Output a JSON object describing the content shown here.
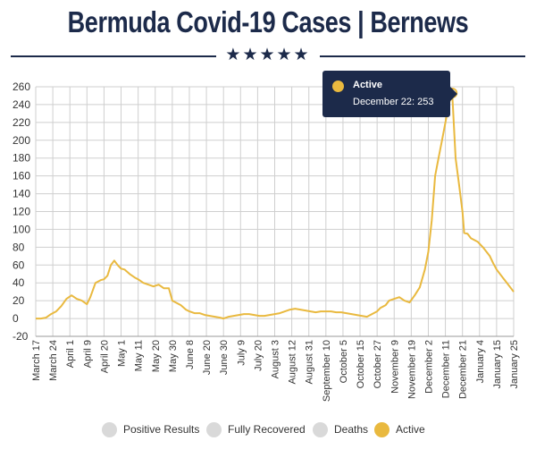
{
  "header": {
    "title": "Bermuda Covid-19 Cases | Bernews",
    "stars": "★★★★★"
  },
  "tooltip": {
    "series": "Active",
    "text": "December 22: 253",
    "color": "#e9b93f"
  },
  "legend": [
    {
      "label": "Positive Results",
      "color": "#d9d9d9"
    },
    {
      "label": "Fully Recovered",
      "color": "#d9d9d9"
    },
    {
      "label": "Deaths",
      "color": "#d9d9d9"
    },
    {
      "label": "Active",
      "color": "#e9b93f"
    }
  ],
  "chart_data": {
    "type": "line",
    "ylim": [
      -20,
      260
    ],
    "yticks": [
      -20,
      0,
      20,
      40,
      60,
      80,
      100,
      120,
      140,
      160,
      180,
      200,
      220,
      240,
      260
    ],
    "xticks": [
      "March 17",
      "March 24",
      "April 1",
      "April 9",
      "April 20",
      "May 1",
      "May 11",
      "May 20",
      "May 30",
      "June 8",
      "June 20",
      "June 30",
      "July 9",
      "July 20",
      "August 3",
      "August 12",
      "August 31",
      "September 10",
      "October 5",
      "October 15",
      "October 27",
      "November 9",
      "November 19",
      "December 2",
      "December 11",
      "December 21",
      "January 4",
      "January 15",
      "January 25"
    ],
    "series": [
      {
        "name": "Active",
        "color": "#e9b93f",
        "x": [
          0,
          0.3,
          0.6,
          0.9,
          1.2,
          1.5,
          1.8,
          2.1,
          2.4,
          2.7,
          3.0,
          3.2,
          3.5,
          3.8,
          4.0,
          4.2,
          4.4,
          4.6,
          4.8,
          5.0,
          5.2,
          5.5,
          5.8,
          6.0,
          6.3,
          6.6,
          6.9,
          7.2,
          7.5,
          7.8,
          8.0,
          8.2,
          8.5,
          8.8,
          9.0,
          9.3,
          9.6,
          9.9,
          10.2,
          10.5,
          10.8,
          11.0,
          11.3,
          11.6,
          11.9,
          12.2,
          12.5,
          12.8,
          13.1,
          13.4,
          13.7,
          14.0,
          14.3,
          14.6,
          14.9,
          15.2,
          15.5,
          15.8,
          16.1,
          16.4,
          16.7,
          17.0,
          17.3,
          17.6,
          17.9,
          18.2,
          18.5,
          18.8,
          19.1,
          19.4,
          19.7,
          20.0,
          20.2,
          20.5,
          20.7,
          21.0,
          21.3,
          21.6,
          21.9,
          22.2,
          22.5,
          22.8,
          23.0,
          23.2,
          23.4,
          23.6,
          23.8,
          24.0,
          24.2,
          24.4,
          24.6,
          24.8,
          25.0,
          25.1,
          25.3,
          25.5,
          25.7,
          25.9,
          26.0,
          26.2,
          26.4,
          26.6,
          26.8,
          27.0,
          27.2,
          27.4,
          27.6,
          27.8,
          28.0
        ],
        "y": [
          0,
          0,
          1,
          5,
          8,
          14,
          22,
          26,
          22,
          20,
          16,
          24,
          40,
          43,
          44,
          48,
          60,
          65,
          60,
          56,
          55,
          50,
          46,
          44,
          40,
          38,
          36,
          38,
          34,
          34,
          20,
          18,
          15,
          10,
          8,
          6,
          6,
          4,
          3,
          2,
          1,
          0,
          2,
          3,
          4,
          5,
          5,
          4,
          3,
          3,
          4,
          5,
          6,
          8,
          10,
          11,
          10,
          9,
          8,
          7,
          8,
          8,
          8,
          7,
          7,
          6,
          5,
          4,
          3,
          2,
          5,
          8,
          12,
          15,
          20,
          22,
          24,
          20,
          18,
          26,
          35,
          55,
          75,
          110,
          160,
          180,
          200,
          220,
          240,
          253,
          180,
          150,
          120,
          96,
          95,
          90,
          88,
          86,
          84,
          80,
          75,
          70,
          62,
          55,
          50,
          45,
          40,
          35,
          30
        ]
      }
    ]
  }
}
